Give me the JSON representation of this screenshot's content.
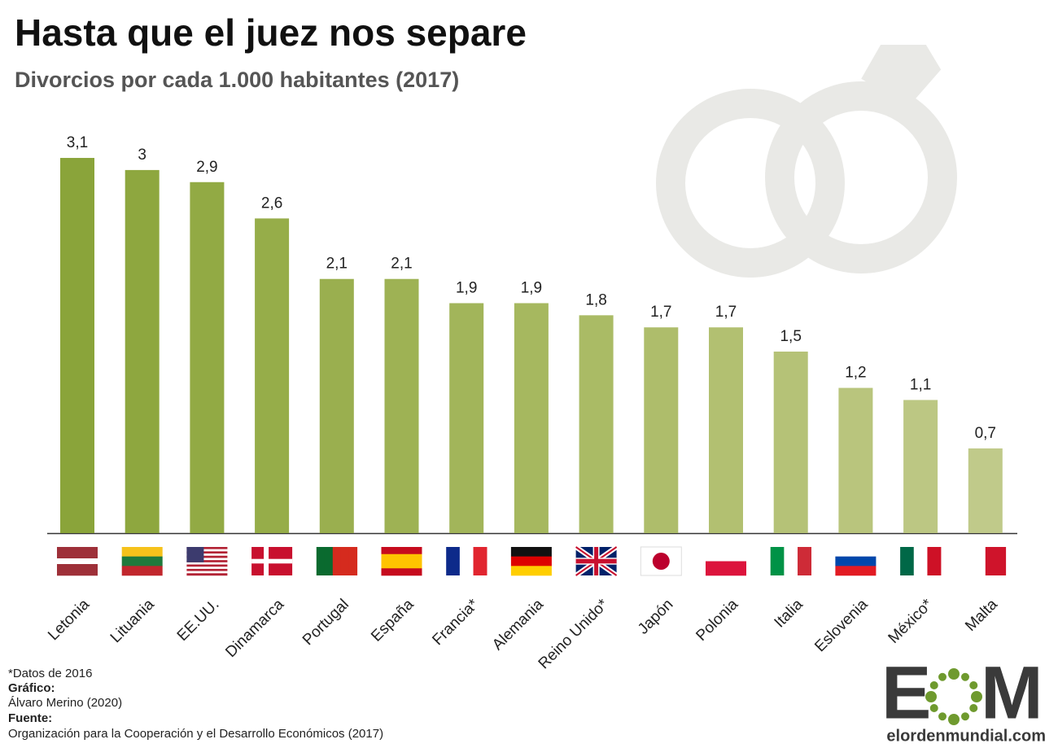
{
  "chart_data": {
    "type": "bar",
    "title": "Hasta que el juez nos separe",
    "subtitle": "Divorcios por cada 1.000 habitantes (2017)",
    "categories": [
      "Letonia",
      "Lituania",
      "EE.UU.",
      "Dinamarca",
      "Portugal",
      "España",
      "Francia*",
      "Alemania",
      "Reino Unido*",
      "Japón",
      "Polonia",
      "Italia",
      "Eslovenia",
      "México*",
      "Malta"
    ],
    "values": [
      3.1,
      3,
      2.9,
      2.6,
      2.1,
      2.1,
      1.9,
      1.9,
      1.8,
      1.7,
      1.7,
      1.5,
      1.2,
      1.1,
      0.7
    ],
    "value_labels": [
      "3,1",
      "3",
      "2,9",
      "2,6",
      "2,1",
      "2,1",
      "1,9",
      "1,9",
      "1,8",
      "1,7",
      "1,7",
      "1,5",
      "1,2",
      "1,1",
      "0,7"
    ],
    "colors": [
      "#8aa43a",
      "#8ea73f",
      "#92aa44",
      "#96ad49",
      "#9aaf4f",
      "#9eb254",
      "#a2b55a",
      "#a6b85f",
      "#aabb65",
      "#aebd6b",
      "#b2c071",
      "#b5c277",
      "#b9c57d",
      "#bcc783",
      "#c0ca8a"
    ]
  },
  "footer": {
    "note": "*Datos de 2016",
    "graphic_label": "Gráfico:",
    "graphic": "Álvaro Merino (2020)",
    "source_label": "Fuente:",
    "source": "Organización para la Cooperación y el Desarrollo Económicos (2017)"
  },
  "logo": {
    "left": "E",
    "right": "M",
    "site": "elordenmundial.com"
  }
}
